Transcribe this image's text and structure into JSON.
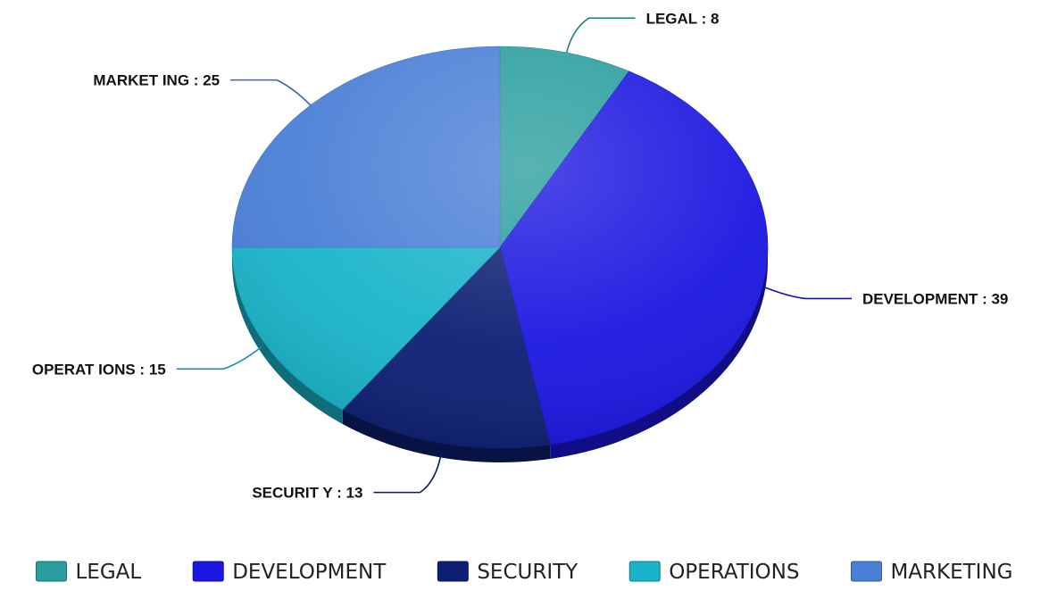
{
  "chart_data": {
    "type": "pie",
    "title": "",
    "series": [
      {
        "slices": [
          {
            "label": "LEGAL",
            "value": 8,
            "display": "LEGAL : 8",
            "color": "#2a9e9e"
          },
          {
            "label": "DEVELOPMENT",
            "value": 39,
            "display": "DEVELOPMENT  : 39",
            "color": "#1b16e0"
          },
          {
            "label": "SECURITY",
            "value": 13,
            "display": "SECURIT Y : 13",
            "color": "#0d1f73"
          },
          {
            "label": "OPERATIONS",
            "value": 15,
            "display": "OPERAT IONS : 15",
            "color": "#19b4c9"
          },
          {
            "label": "MARKETING",
            "value": 25,
            "display": "MARKET ING : 25",
            "color": "#4a7fd6"
          }
        ]
      }
    ],
    "start": "12 o'clock",
    "direction": "clockwise",
    "style": "3d tilted",
    "legend": {
      "position": "bottom",
      "items": [
        "LEGAL",
        "DEVELOPMENT",
        "SECURITY",
        "OPERATIONS",
        "MARKETING"
      ]
    }
  }
}
